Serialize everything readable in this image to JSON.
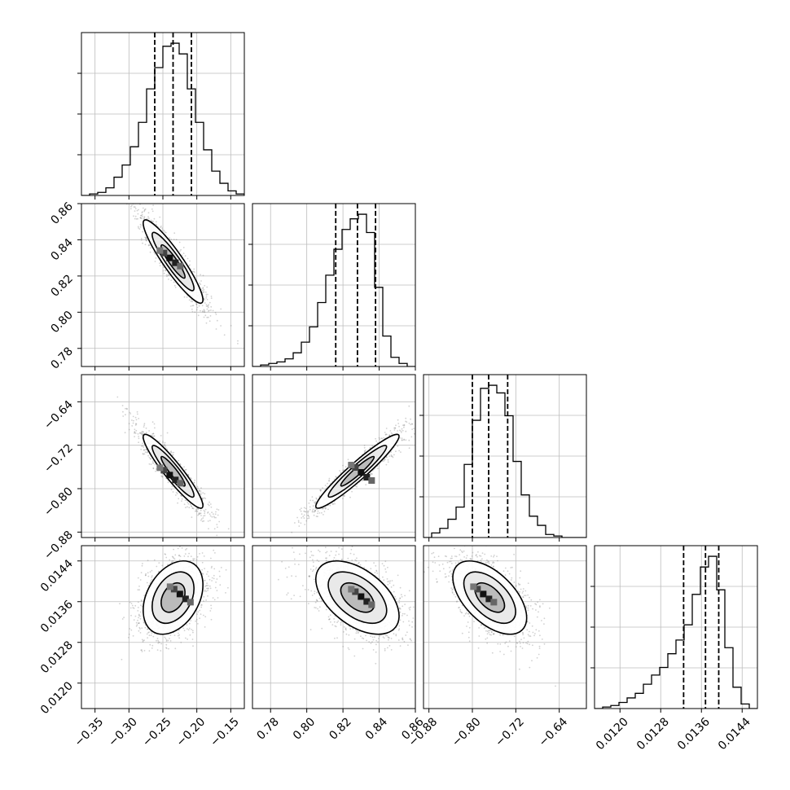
{
  "chart_data": {
    "type": "corner",
    "grid": true,
    "parameters": [
      {
        "id": "p0",
        "range": [
          -0.37,
          -0.13
        ],
        "ticks": [
          -0.35,
          -0.3,
          -0.25,
          -0.2,
          -0.15
        ],
        "tick_labels": [
          "−0.35",
          "−0.30",
          "−0.25",
          "−0.20",
          "−0.15"
        ],
        "quantiles": [
          -0.262,
          -0.235,
          -0.208
        ],
        "hist_edges": [
          -0.37,
          -0.358,
          -0.346,
          -0.334,
          -0.322,
          -0.31,
          -0.298,
          -0.286,
          -0.274,
          -0.262,
          -0.25,
          -0.238,
          -0.226,
          -0.214,
          -0.202,
          -0.19,
          -0.178,
          -0.166,
          -0.154,
          -0.142,
          -0.13
        ],
        "hist_counts": [
          0.0,
          0.01,
          0.02,
          0.05,
          0.12,
          0.2,
          0.32,
          0.48,
          0.7,
          0.84,
          0.98,
          1.0,
          0.93,
          0.7,
          0.48,
          0.3,
          0.16,
          0.08,
          0.03,
          0.01
        ]
      },
      {
        "id": "p1",
        "range": [
          0.77,
          0.86
        ],
        "ticks": [
          0.78,
          0.8,
          0.82,
          0.84,
          0.86
        ],
        "tick_labels": [
          "0.78",
          "0.80",
          "0.82",
          "0.84",
          "0.86"
        ],
        "quantiles": [
          0.816,
          0.828,
          0.838
        ],
        "hist_edges": [
          0.77,
          0.7745,
          0.779,
          0.7835,
          0.788,
          0.7925,
          0.797,
          0.8015,
          0.806,
          0.8105,
          0.815,
          0.8195,
          0.824,
          0.8285,
          0.833,
          0.8375,
          0.842,
          0.8465,
          0.851,
          0.8555,
          0.86
        ],
        "hist_counts": [
          0.0,
          0.01,
          0.02,
          0.03,
          0.05,
          0.09,
          0.16,
          0.26,
          0.42,
          0.6,
          0.77,
          0.9,
          0.97,
          1.0,
          0.88,
          0.52,
          0.2,
          0.06,
          0.02,
          0.0
        ]
      },
      {
        "id": "p2",
        "range": [
          -0.89,
          -0.59
        ],
        "ticks": [
          -0.88,
          -0.8,
          -0.72,
          -0.64
        ],
        "tick_labels": [
          "−0.88",
          "−0.80",
          "−0.72",
          "−0.64"
        ],
        "quantiles": [
          -0.8,
          -0.77,
          -0.735
        ],
        "hist_edges": [
          -0.89,
          -0.875,
          -0.86,
          -0.845,
          -0.83,
          -0.815,
          -0.8,
          -0.785,
          -0.77,
          -0.755,
          -0.74,
          -0.725,
          -0.71,
          -0.695,
          -0.68,
          -0.665,
          -0.65,
          -0.635,
          -0.62,
          -0.605,
          -0.59
        ],
        "hist_counts": [
          0.0,
          0.03,
          0.06,
          0.12,
          0.2,
          0.48,
          0.77,
          0.98,
          1.0,
          0.95,
          0.8,
          0.5,
          0.28,
          0.14,
          0.08,
          0.02,
          0.01,
          0.0,
          0.0,
          0.0
        ]
      },
      {
        "id": "p3",
        "range": [
          0.0115,
          0.0147
        ],
        "ticks": [
          0.012,
          0.0128,
          0.0136,
          0.0144
        ],
        "tick_labels": [
          "0.0120",
          "0.0128",
          "0.0136",
          "0.0144"
        ],
        "quantiles": [
          0.01325,
          0.01368,
          0.01394
        ],
        "hist_edges": [
          0.0115,
          0.01166,
          0.01182,
          0.01198,
          0.01214,
          0.0123,
          0.01246,
          0.01262,
          0.01278,
          0.01294,
          0.0131,
          0.01326,
          0.01342,
          0.01358,
          0.01374,
          0.0139,
          0.01406,
          0.01422,
          0.01438,
          0.01454,
          0.0147
        ],
        "hist_counts": [
          0.0,
          0.01,
          0.02,
          0.04,
          0.07,
          0.1,
          0.16,
          0.22,
          0.27,
          0.36,
          0.45,
          0.55,
          0.75,
          0.93,
          1.0,
          0.78,
          0.4,
          0.14,
          0.03,
          0.0
        ]
      }
    ],
    "pairs": [
      {
        "x": 0,
        "y": 1,
        "mean": [
          -0.235,
          0.828
        ],
        "sd": [
          0.022,
          0.0115
        ],
        "rho": -0.92,
        "peak": [
          -0.24,
          0.83
        ]
      },
      {
        "x": 0,
        "y": 2,
        "mean": [
          -0.235,
          -0.768
        ],
        "sd": [
          0.022,
          0.034
        ],
        "rho": -0.93,
        "peak": [
          -0.24,
          -0.775
        ]
      },
      {
        "x": 1,
        "y": 2,
        "mean": [
          0.828,
          -0.768
        ],
        "sd": [
          0.0115,
          0.034
        ],
        "rho": 0.95,
        "peak": [
          0.83,
          -0.77
        ]
      },
      {
        "x": 0,
        "y": 3,
        "mean": [
          -0.235,
          0.01368
        ],
        "sd": [
          0.022,
          0.00036
        ],
        "rho": 0.35,
        "peak": [
          -0.225,
          0.01375
        ]
      },
      {
        "x": 1,
        "y": 3,
        "mean": [
          0.828,
          0.01368
        ],
        "sd": [
          0.0115,
          0.00036
        ],
        "rho": -0.5,
        "peak": [
          0.83,
          0.0137
        ]
      },
      {
        "x": 2,
        "y": 3,
        "mean": [
          -0.768,
          0.01368
        ],
        "sd": [
          0.034,
          0.00036
        ],
        "rho": -0.55,
        "peak": [
          -0.78,
          0.01375
        ]
      }
    ]
  }
}
